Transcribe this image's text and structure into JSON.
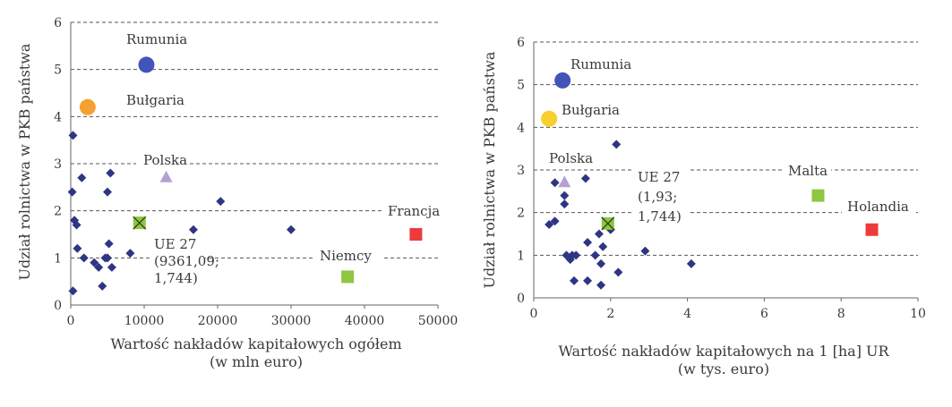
{
  "chart_data": [
    {
      "type": "scatter",
      "title": "",
      "ylabel": "Udział rolnictwa w PKB państwa",
      "xlabel_lines": [
        "Wartość nakładów kapitałowych ogółem",
        "(w mln euro)"
      ],
      "xlim": [
        0,
        50000
      ],
      "ylim": [
        0,
        6
      ],
      "xticks": [
        0,
        10000,
        20000,
        30000,
        40000,
        50000
      ],
      "xtick_labels": [
        "0",
        "10000",
        "20000",
        "30000",
        "40000",
        "50000"
      ],
      "yticks": [
        0,
        1,
        2,
        3,
        4,
        5,
        6
      ],
      "ytick_labels": [
        "0",
        "1",
        "2",
        "3",
        "4",
        "5",
        "6"
      ],
      "grid": "dashed horizontal",
      "points": [
        {
          "x": 300,
          "y": 3.6
        },
        {
          "x": 200,
          "y": 2.4
        },
        {
          "x": 500,
          "y": 1.8
        },
        {
          "x": 800,
          "y": 1.7
        },
        {
          "x": 900,
          "y": 1.2
        },
        {
          "x": 1500,
          "y": 2.7
        },
        {
          "x": 1800,
          "y": 1.0
        },
        {
          "x": 3200,
          "y": 0.9
        },
        {
          "x": 3800,
          "y": 0.8
        },
        {
          "x": 4300,
          "y": 0.4
        },
        {
          "x": 4700,
          "y": 1.0
        },
        {
          "x": 5000,
          "y": 2.4
        },
        {
          "x": 5200,
          "y": 1.3
        },
        {
          "x": 5400,
          "y": 2.8
        },
        {
          "x": 5600,
          "y": 0.8
        },
        {
          "x": 5000,
          "y": 1.0
        },
        {
          "x": 8100,
          "y": 1.1
        },
        {
          "x": 16700,
          "y": 1.6
        },
        {
          "x": 20400,
          "y": 2.2
        },
        {
          "x": 30000,
          "y": 1.6
        },
        {
          "x": 300,
          "y": 0.3
        }
      ],
      "highlights": [
        {
          "name": "Rumunia",
          "x": 10300,
          "y": 5.1,
          "marker": "circle-large",
          "color": "#4354b8"
        },
        {
          "name": "Bułgaria",
          "x": 2300,
          "y": 4.2,
          "marker": "circle",
          "color": "#f5a030"
        },
        {
          "name": "Polska",
          "x": 13000,
          "y": 2.7,
          "marker": "triangle",
          "color": "#b79fd6"
        },
        {
          "name": "UE 27",
          "x": 9361.09,
          "y": 1.744,
          "marker": "square-x",
          "color": "#8dc63f"
        },
        {
          "name": "Niemcy",
          "x": 37700,
          "y": 0.6,
          "marker": "square",
          "color": "#8dc63f"
        },
        {
          "name": "Francja",
          "x": 47000,
          "y": 1.5,
          "marker": "square",
          "color": "#ec3b3b"
        }
      ],
      "annotations": {
        "rumunia": "Rumunia",
        "bulgaria": "Bułgaria",
        "polska": "Polska",
        "ue_line1": "UE 27",
        "ue_line2": "(9361,09;",
        "ue_line3": "1,744)",
        "niemcy": "Niemcy",
        "francja": "Francja"
      }
    },
    {
      "type": "scatter",
      "title": "",
      "ylabel": "Udział rolnictwa w PKB państwa",
      "xlabel_lines": [
        "Wartość nakładów kapitałowych na 1 [ha] UR",
        "(w tys. euro)"
      ],
      "xlim": [
        0,
        10
      ],
      "ylim": [
        0,
        6
      ],
      "xticks": [
        0,
        2,
        4,
        6,
        8,
        10
      ],
      "xtick_labels": [
        "0",
        "2",
        "4",
        "6",
        "8",
        "10"
      ],
      "yticks": [
        0,
        1,
        2,
        3,
        4,
        5,
        6
      ],
      "ytick_labels": [
        "0",
        "1",
        "2",
        "3",
        "4",
        "5",
        "6"
      ],
      "grid": "dashed horizontal",
      "points": [
        {
          "x": 0.4,
          "y": 1.72
        },
        {
          "x": 0.55,
          "y": 1.8
        },
        {
          "x": 0.55,
          "y": 2.7
        },
        {
          "x": 0.8,
          "y": 2.4
        },
        {
          "x": 0.8,
          "y": 2.2
        },
        {
          "x": 0.85,
          "y": 1.0
        },
        {
          "x": 0.95,
          "y": 0.9
        },
        {
          "x": 1.0,
          "y": 1.0
        },
        {
          "x": 1.05,
          "y": 0.4
        },
        {
          "x": 1.1,
          "y": 1.0
        },
        {
          "x": 1.35,
          "y": 2.8
        },
        {
          "x": 1.4,
          "y": 1.3
        },
        {
          "x": 1.4,
          "y": 0.4
        },
        {
          "x": 1.6,
          "y": 1.0
        },
        {
          "x": 1.7,
          "y": 1.5
        },
        {
          "x": 1.75,
          "y": 0.8
        },
        {
          "x": 1.75,
          "y": 0.3
        },
        {
          "x": 1.8,
          "y": 1.2
        },
        {
          "x": 2.0,
          "y": 1.6
        },
        {
          "x": 2.15,
          "y": 3.6
        },
        {
          "x": 2.2,
          "y": 0.6
        },
        {
          "x": 2.9,
          "y": 1.1
        },
        {
          "x": 4.1,
          "y": 0.8
        }
      ],
      "highlights": [
        {
          "name": "Rumunia",
          "x": 0.75,
          "y": 5.1,
          "marker": "circle-large",
          "color": "#4354b8"
        },
        {
          "name": "Bułgaria",
          "x": 0.4,
          "y": 4.2,
          "marker": "circle",
          "color": "#f7cf2e"
        },
        {
          "name": "Polska",
          "x": 0.8,
          "y": 2.7,
          "marker": "triangle",
          "color": "#b79fd6"
        },
        {
          "name": "UE 27",
          "x": 1.93,
          "y": 1.744,
          "marker": "square-x",
          "color": "#8dc63f"
        },
        {
          "name": "Malta",
          "x": 7.4,
          "y": 2.4,
          "marker": "square",
          "color": "#8dc63f"
        },
        {
          "name": "Holandia",
          "x": 8.8,
          "y": 1.6,
          "marker": "square",
          "color": "#ec3b3b"
        }
      ],
      "annotations": {
        "rumunia": "Rumunia",
        "bulgaria": "Bułgaria",
        "polska": "Polska",
        "ue_line1": "UE 27",
        "ue_line2": "(1,93;",
        "ue_line3": "1,744)",
        "malta": "Malta",
        "holandia": "Holandia"
      }
    }
  ]
}
